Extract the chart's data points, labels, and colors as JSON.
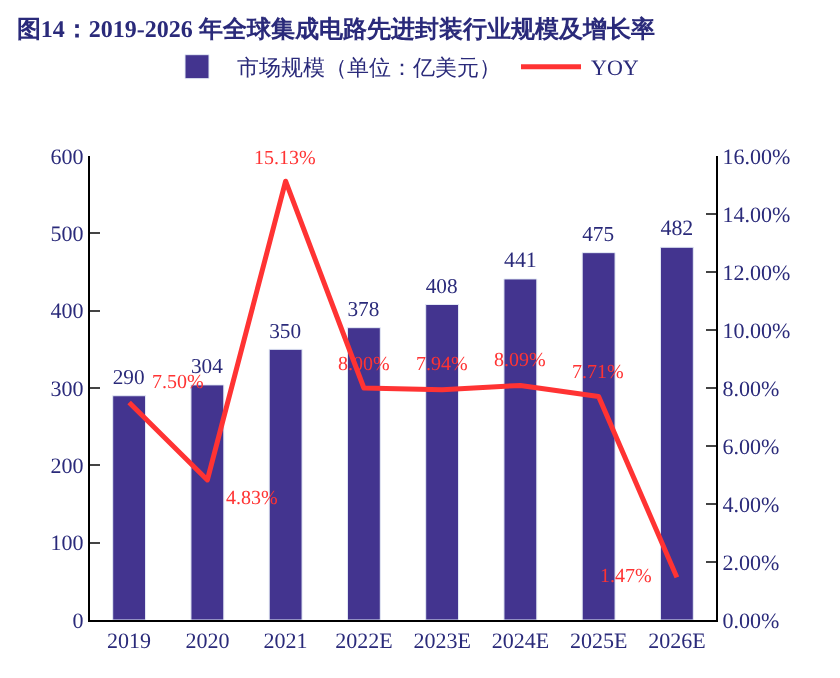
{
  "chart_data": {
    "type": "bar",
    "title": "图14：2019-2026 年全球集成电路先进封装行业规模及增长率",
    "categories": [
      "2019",
      "2020",
      "2021",
      "2022E",
      "2023E",
      "2024E",
      "2025E",
      "2026E"
    ],
    "series": [
      {
        "name": "市场规模（单位：亿美元）",
        "color": "#43348f",
        "values": [
          290,
          304,
          350,
          378,
          408,
          441,
          475,
          482
        ],
        "value_labels": [
          "290",
          "304",
          "350",
          "378",
          "408",
          "441",
          "475",
          "482"
        ]
      },
      {
        "name": "YOY",
        "type": "line",
        "axis": "y2",
        "color": "#ff3333",
        "values": [
          7.5,
          4.83,
          15.13,
          8.0,
          7.94,
          8.09,
          7.71,
          1.47
        ],
        "value_labels": [
          "7.50%",
          "4.83%",
          "15.13%",
          "8.00%",
          "7.94%",
          "8.09%",
          "7.71%",
          "1.47%"
        ]
      }
    ],
    "ylim": [
      0,
      600
    ],
    "yticks": [
      0,
      100,
      200,
      300,
      400,
      500,
      600
    ],
    "y2lim": [
      0,
      16
    ],
    "y2ticks": [
      {
        "value": 0,
        "label": "0.00%"
      },
      {
        "value": 2,
        "label": "2.00%"
      },
      {
        "value": 4,
        "label": "4.00%"
      },
      {
        "value": 6,
        "label": "6.00%"
      },
      {
        "value": 8,
        "label": "8.00%"
      },
      {
        "value": 10,
        "label": "10.00%"
      },
      {
        "value": 12,
        "label": "12.00%"
      },
      {
        "value": 14,
        "label": "14.00%"
      },
      {
        "value": 16,
        "label": "16.00%"
      }
    ],
    "legend": "top",
    "marker": "none",
    "line_style": "solid"
  }
}
